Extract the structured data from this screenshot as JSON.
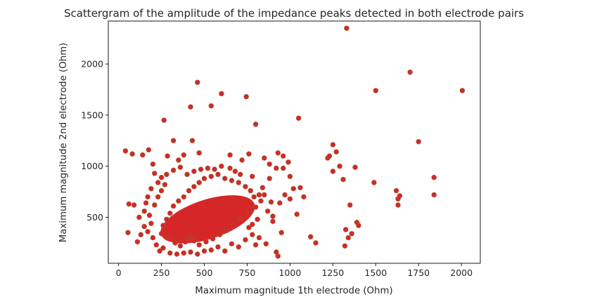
{
  "chart_data": {
    "type": "scatter",
    "title": "Scattergram of the amplitude of the impedance peaks detected in both electrode pairs",
    "xlabel": "Maximum magnitude 1th electrode (Ohm)",
    "ylabel": "Maximum magnitude 2nd electrode (Ohm)",
    "xlim": [
      -60,
      2110
    ],
    "ylim": [
      50,
      2420
    ],
    "xticks": [
      0,
      250,
      500,
      750,
      1000,
      1250,
      1500,
      1750,
      2000
    ],
    "yticks": [
      500,
      1000,
      1500,
      2000
    ],
    "grid": false,
    "marker_color": "#d62728",
    "marker_edge_color": "#a0522d",
    "series": [
      {
        "points": [
          [
            40,
            1150
          ],
          [
            80,
            1120
          ],
          [
            140,
            1110
          ],
          [
            175,
            1160
          ],
          [
            200,
            1020
          ],
          [
            60,
            630
          ],
          [
            90,
            620
          ],
          [
            55,
            350
          ],
          [
            110,
            260
          ],
          [
            130,
            330
          ],
          [
            150,
            410
          ],
          [
            265,
            1450
          ],
          [
            285,
            1100
          ],
          [
            320,
            1250
          ],
          [
            350,
            1060
          ],
          [
            380,
            1110
          ],
          [
            420,
            1580
          ],
          [
            430,
            1250
          ],
          [
            460,
            1820
          ],
          [
            470,
            1130
          ],
          [
            540,
            1590
          ],
          [
            600,
            1710
          ],
          [
            650,
            1110
          ],
          [
            720,
            1060
          ],
          [
            745,
            1680
          ],
          [
            760,
            1120
          ],
          [
            800,
            1410
          ],
          [
            850,
            1080
          ],
          [
            880,
            1020
          ],
          [
            890,
            650
          ],
          [
            900,
            510
          ],
          [
            930,
            1130
          ],
          [
            960,
            1100
          ],
          [
            990,
            1040
          ],
          [
            1000,
            900
          ],
          [
            1020,
            780
          ],
          [
            1050,
            1470
          ],
          [
            1060,
            790
          ],
          [
            1080,
            700
          ],
          [
            1040,
            530
          ],
          [
            1120,
            310
          ],
          [
            1150,
            250
          ],
          [
            1220,
            1080
          ],
          [
            1230,
            1100
          ],
          [
            1250,
            1210
          ],
          [
            1250,
            950
          ],
          [
            1270,
            1140
          ],
          [
            1290,
            1000
          ],
          [
            1310,
            870
          ],
          [
            1320,
            220
          ],
          [
            1325,
            380
          ],
          [
            1330,
            2350
          ],
          [
            1340,
            300
          ],
          [
            1350,
            620
          ],
          [
            1360,
            340
          ],
          [
            1380,
            990
          ],
          [
            1390,
            450
          ],
          [
            1400,
            420
          ],
          [
            1490,
            840
          ],
          [
            1500,
            1740
          ],
          [
            1620,
            760
          ],
          [
            1630,
            680
          ],
          [
            1630,
            620
          ],
          [
            1640,
            710
          ],
          [
            1700,
            1920
          ],
          [
            1750,
            1240
          ],
          [
            1840,
            890
          ],
          [
            1840,
            720
          ],
          [
            2005,
            1740
          ],
          [
            920,
            160
          ],
          [
            930,
            120
          ],
          [
            860,
            240
          ],
          [
            820,
            300
          ],
          [
            950,
            350
          ],
          [
            900,
            460
          ],
          [
            940,
            640
          ],
          [
            970,
            720
          ],
          [
            1000,
            680
          ],
          [
            880,
            880
          ],
          [
            920,
            980
          ],
          [
            960,
            980
          ],
          [
            840,
            790
          ],
          [
            800,
            230
          ],
          [
            780,
            900
          ],
          [
            680,
            950
          ],
          [
            710,
            920
          ],
          [
            650,
            980
          ],
          [
            600,
            1000
          ],
          [
            560,
            970
          ],
          [
            520,
            980
          ],
          [
            480,
            970
          ],
          [
            440,
            950
          ],
          [
            400,
            920
          ],
          [
            360,
            990
          ],
          [
            320,
            960
          ],
          [
            280,
            920
          ],
          [
            250,
            890
          ],
          [
            230,
            840
          ],
          [
            210,
            930
          ],
          [
            190,
            780
          ],
          [
            170,
            700
          ],
          [
            160,
            640
          ],
          [
            150,
            560
          ],
          [
            120,
            500
          ],
          [
            180,
            520
          ],
          [
            170,
            360
          ],
          [
            200,
            300
          ],
          [
            220,
            230
          ],
          [
            240,
            170
          ],
          [
            260,
            200
          ],
          [
            300,
            150
          ],
          [
            340,
            140
          ],
          [
            380,
            150
          ],
          [
            420,
            160
          ],
          [
            460,
            140
          ],
          [
            500,
            170
          ],
          [
            540,
            180
          ],
          [
            580,
            210
          ],
          [
            620,
            170
          ],
          [
            660,
            240
          ],
          [
            700,
            210
          ],
          [
            740,
            280
          ],
          [
            780,
            330
          ],
          [
            760,
            400
          ],
          [
            190,
            440
          ],
          [
            210,
            620
          ],
          [
            230,
            700
          ],
          [
            250,
            760
          ],
          [
            270,
            820
          ],
          [
            300,
            300
          ],
          [
            330,
            250
          ],
          [
            360,
            220
          ],
          [
            390,
            260
          ],
          [
            410,
            310
          ],
          [
            440,
            270
          ],
          [
            470,
            230
          ],
          [
            510,
            260
          ],
          [
            550,
            290
          ],
          [
            590,
            330
          ],
          [
            630,
            370
          ],
          [
            670,
            420
          ],
          [
            710,
            480
          ],
          [
            760,
            540
          ],
          [
            800,
            600
          ],
          [
            830,
            660
          ],
          [
            850,
            720
          ],
          [
            870,
            560
          ],
          [
            810,
            480
          ],
          [
            780,
            430
          ],
          [
            250,
            340
          ],
          [
            260,
            420
          ],
          [
            280,
            480
          ],
          [
            300,
            540
          ],
          [
            320,
            610
          ],
          [
            350,
            660
          ],
          [
            380,
            700
          ],
          [
            410,
            760
          ],
          [
            440,
            800
          ],
          [
            470,
            840
          ],
          [
            500,
            880
          ],
          [
            540,
            900
          ],
          [
            580,
            920
          ],
          [
            620,
            880
          ],
          [
            660,
            860
          ],
          [
            700,
            840
          ],
          [
            740,
            800
          ],
          [
            770,
            760
          ],
          [
            790,
            700
          ],
          [
            820,
            720
          ]
        ]
      }
    ]
  }
}
